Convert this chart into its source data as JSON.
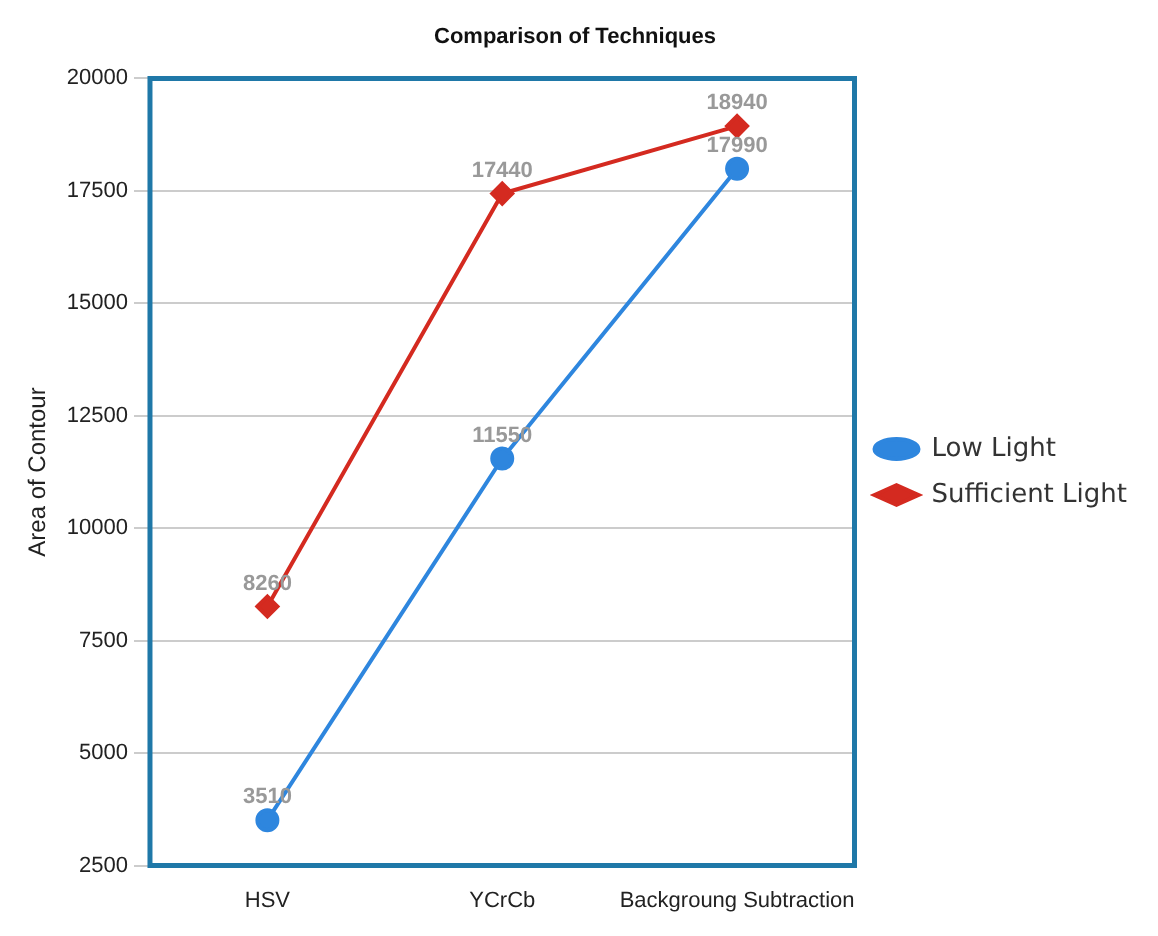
{
  "chart_data": {
    "type": "line",
    "title": "Comparison of Techniques",
    "ylabel": "Area of Contour",
    "categories": [
      "HSV",
      "YCrCb",
      "Backgroung Subtraction"
    ],
    "series": [
      {
        "name": "Low Light",
        "color": "#2e86de",
        "values": [
          3510,
          11550,
          17990
        ],
        "marker": "circle"
      },
      {
        "name": "Sufficient Light",
        "color": "#d42a20",
        "values": [
          8260,
          17440,
          18940
        ],
        "marker": "diamond"
      }
    ],
    "ylim": [
      2500,
      20000
    ],
    "yticks": [
      2500,
      5000,
      7500,
      10000,
      12500,
      15000,
      17500,
      20000
    ],
    "grid": "y",
    "legend": "right",
    "data_labels": true
  }
}
